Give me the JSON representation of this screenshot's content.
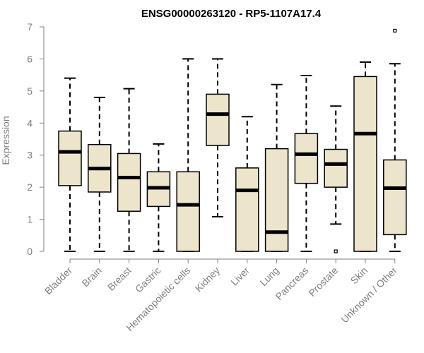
{
  "colors": {
    "box_fill": "#ece5cc",
    "stroke": "#000000",
    "axis": "#7f7f7f",
    "text": "#7f7f7f"
  },
  "chart_data": {
    "type": "boxplot",
    "title": "ENSG00000263120 - RP5-1107A17.4",
    "xlabel": "",
    "ylabel": "Expression",
    "ylim": [
      0,
      7
    ],
    "yticks": [
      0,
      1,
      2,
      3,
      4,
      5,
      6,
      7
    ],
    "categories": [
      "Bladder",
      "Brain",
      "Breast",
      "Gastric",
      "Hematopoietic cells",
      "Kidney",
      "Liver",
      "Lung",
      "Pancreas",
      "Prostate",
      "Skin",
      "Unknown / Other"
    ],
    "boxes": [
      {
        "label": "Bladder",
        "whisker_low": 0,
        "q1": 2.05,
        "median": 3.1,
        "q3": 3.75,
        "whisker_high": 5.4,
        "outliers": []
      },
      {
        "label": "Brain",
        "whisker_low": 0,
        "q1": 1.85,
        "median": 2.58,
        "q3": 3.33,
        "whisker_high": 4.8,
        "outliers": []
      },
      {
        "label": "Breast",
        "whisker_low": 0,
        "q1": 1.25,
        "median": 2.3,
        "q3": 3.05,
        "whisker_high": 5.07,
        "outliers": []
      },
      {
        "label": "Gastric",
        "whisker_low": 0,
        "q1": 1.4,
        "median": 1.98,
        "q3": 2.48,
        "whisker_high": 3.35,
        "outliers": []
      },
      {
        "label": "Hematopoietic cells",
        "whisker_low": 0,
        "q1": 0,
        "median": 1.45,
        "q3": 2.48,
        "whisker_high": 6.0,
        "outliers": []
      },
      {
        "label": "Kidney",
        "whisker_low": 1.08,
        "q1": 3.3,
        "median": 4.28,
        "q3": 4.9,
        "whisker_high": 6.0,
        "outliers": []
      },
      {
        "label": "Liver",
        "whisker_low": 0,
        "q1": 0,
        "median": 1.9,
        "q3": 2.6,
        "whisker_high": 4.2,
        "outliers": []
      },
      {
        "label": "Lung",
        "whisker_low": 0,
        "q1": 0,
        "median": 0.6,
        "q3": 3.2,
        "whisker_high": 5.2,
        "outliers": []
      },
      {
        "label": "Pancreas",
        "whisker_low": 0,
        "q1": 2.12,
        "median": 3.03,
        "q3": 3.67,
        "whisker_high": 5.48,
        "outliers": []
      },
      {
        "label": "Prostate",
        "whisker_low": 0.85,
        "q1": 2.0,
        "median": 2.72,
        "q3": 3.18,
        "whisker_high": 4.53,
        "outliers": [
          0
        ]
      },
      {
        "label": "Skin",
        "whisker_low": 0,
        "q1": 0,
        "median": 3.67,
        "q3": 5.45,
        "whisker_high": 5.9,
        "outliers": []
      },
      {
        "label": "Unknown / Other",
        "whisker_low": 0,
        "q1": 0.52,
        "median": 1.97,
        "q3": 2.85,
        "whisker_high": 5.85,
        "outliers": [
          6.88
        ]
      }
    ]
  }
}
